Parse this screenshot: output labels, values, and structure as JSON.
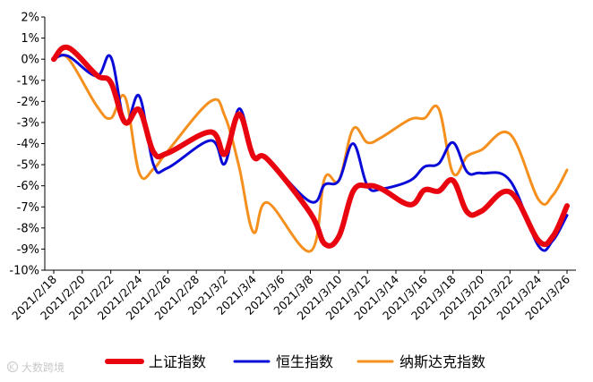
{
  "chart_data": {
    "type": "line",
    "title": "",
    "xlabel": "",
    "ylabel": "",
    "ylim": [
      -10,
      2
    ],
    "ytick_step": 1,
    "yticks": [
      "2%",
      "1%",
      "0%",
      "-1%",
      "-2%",
      "-3%",
      "-4%",
      "-5%",
      "-6%",
      "-7%",
      "-8%",
      "-9%",
      "-10%"
    ],
    "xlim": [
      0,
      36
    ],
    "xticks": [
      {
        "x": 0,
        "label": "2021/2/18"
      },
      {
        "x": 2,
        "label": "2021/2/20"
      },
      {
        "x": 4,
        "label": "2021/2/22"
      },
      {
        "x": 6,
        "label": "2021/2/24"
      },
      {
        "x": 8,
        "label": "2021/2/26"
      },
      {
        "x": 10,
        "label": "2021/2/28"
      },
      {
        "x": 12,
        "label": "2021/3/2"
      },
      {
        "x": 14,
        "label": "2021/3/4"
      },
      {
        "x": 16,
        "label": "2021/3/6"
      },
      {
        "x": 18,
        "label": "2021/3/8"
      },
      {
        "x": 20,
        "label": "2021/3/10"
      },
      {
        "x": 22,
        "label": "2021/3/12"
      },
      {
        "x": 24,
        "label": "2021/3/14"
      },
      {
        "x": 26,
        "label": "2021/3/16"
      },
      {
        "x": 28,
        "label": "2021/3/18"
      },
      {
        "x": 30,
        "label": "2021/3/20"
      },
      {
        "x": 32,
        "label": "2021/3/22"
      },
      {
        "x": 34,
        "label": "2021/3/24"
      },
      {
        "x": 36,
        "label": "2021/3/26"
      }
    ],
    "legend_position": "bottom",
    "series": [
      {
        "name": "上证指数",
        "color": "#e8050f",
        "x": [
          0,
          1,
          3,
          4,
          5,
          6,
          7,
          8,
          11,
          12,
          13,
          14,
          15,
          18,
          19,
          20,
          21,
          22,
          23,
          25,
          26,
          27,
          28,
          29,
          30,
          32,
          34,
          35,
          36
        ],
        "values": [
          0.0,
          0.55,
          -0.75,
          -1.1,
          -3.0,
          -2.4,
          -4.4,
          -4.45,
          -3.45,
          -4.5,
          -2.6,
          -4.6,
          -4.75,
          -7.3,
          -8.75,
          -8.4,
          -6.25,
          -6.0,
          -6.15,
          -6.9,
          -6.2,
          -6.25,
          -5.75,
          -7.25,
          -7.2,
          -6.3,
          -8.6,
          -8.4,
          -6.95
        ]
      },
      {
        "name": "恒生指数",
        "color": "#0a0ad8",
        "x": [
          0,
          1,
          3,
          4,
          5,
          6,
          7,
          8,
          11,
          12,
          13,
          14,
          15,
          18,
          19,
          20,
          21,
          22,
          23,
          25,
          26,
          27,
          28,
          29,
          30,
          32,
          34,
          35,
          36
        ],
        "values": [
          0.0,
          0.15,
          -0.8,
          0.1,
          -3.0,
          -1.75,
          -5.0,
          -5.15,
          -3.85,
          -4.95,
          -2.35,
          -4.5,
          -4.75,
          -6.75,
          -5.95,
          -5.75,
          -4.0,
          -6.0,
          -6.15,
          -5.75,
          -5.1,
          -4.95,
          -3.95,
          -5.35,
          -5.4,
          -5.75,
          -8.85,
          -8.6,
          -7.4
        ]
      },
      {
        "name": "纳斯达克指数",
        "color": "#f5901e",
        "x": [
          0,
          1,
          3,
          4,
          5,
          6,
          7,
          8,
          11,
          12,
          13,
          14,
          15,
          18,
          19,
          20,
          21,
          22,
          23,
          25,
          26,
          27,
          28,
          29,
          30,
          32,
          34,
          35,
          36
        ],
        "values": [
          0.0,
          0.05,
          -2.2,
          -2.8,
          -1.8,
          -5.4,
          -5.2,
          -4.35,
          -2.0,
          -2.7,
          -5.1,
          -8.2,
          -6.8,
          -9.1,
          -5.65,
          -5.75,
          -3.3,
          -3.95,
          -3.7,
          -2.85,
          -2.8,
          -2.35,
          -5.4,
          -4.6,
          -4.3,
          -3.55,
          -6.65,
          -6.45,
          -5.25
        ]
      }
    ]
  },
  "watermark": {
    "text": "大数跨境"
  }
}
